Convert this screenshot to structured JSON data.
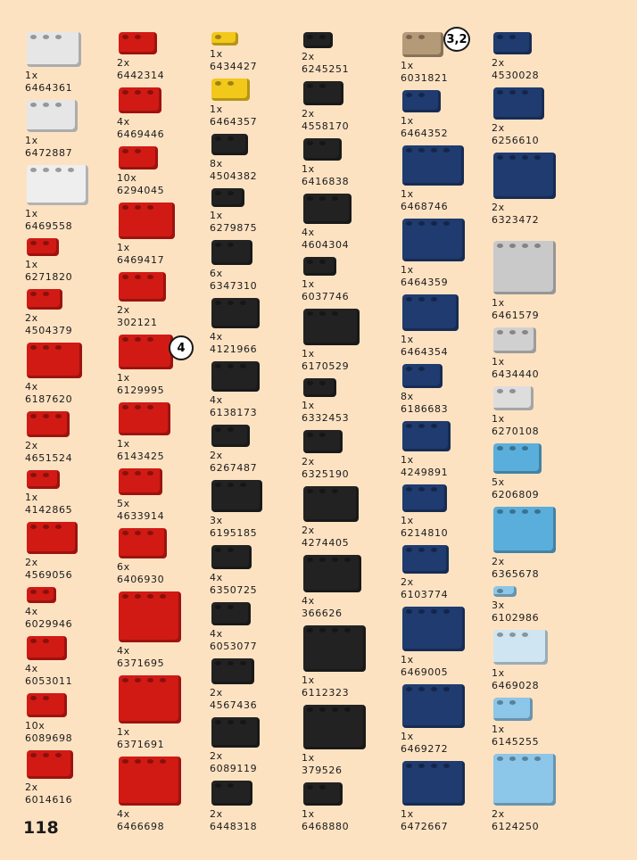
{
  "page_number": "118",
  "columns": [
    {
      "items": [
        {
          "qty": "1x",
          "part": "6464361"
        },
        {
          "qty": "1x",
          "part": "6472887"
        },
        {
          "qty": "1x",
          "part": "6469558"
        },
        {
          "qty": "1x",
          "part": "6271820"
        },
        {
          "qty": "2x",
          "part": "4504379"
        },
        {
          "qty": "4x",
          "part": "6187620"
        },
        {
          "qty": "2x",
          "part": "4651524"
        },
        {
          "qty": "1x",
          "part": "4142865"
        },
        {
          "qty": "2x",
          "part": "4569056"
        },
        {
          "qty": "4x",
          "part": "6029946"
        },
        {
          "qty": "4x",
          "part": "6053011"
        },
        {
          "qty": "10x",
          "part": "6089698"
        },
        {
          "qty": "2x",
          "part": "6014616"
        }
      ]
    },
    {
      "items": [
        {
          "qty": "2x",
          "part": "6442314"
        },
        {
          "qty": "4x",
          "part": "6469446"
        },
        {
          "qty": "10x",
          "part": "6294045"
        },
        {
          "qty": "1x",
          "part": "6469417"
        },
        {
          "qty": "2x",
          "part": "302121"
        },
        {
          "qty": "1x",
          "part": "6129995"
        },
        {
          "qty": "1x",
          "part": "6143425"
        },
        {
          "qty": "5x",
          "part": "4633914"
        },
        {
          "qty": "6x",
          "part": "6406930"
        },
        {
          "qty": "4x",
          "part": "6371695"
        },
        {
          "qty": "1x",
          "part": "6371691"
        },
        {
          "qty": "4x",
          "part": "6466698"
        }
      ]
    },
    {
      "items": [
        {
          "qty": "1x",
          "part": "6434427"
        },
        {
          "qty": "1x",
          "part": "6464357"
        },
        {
          "qty": "8x",
          "part": "4504382"
        },
        {
          "qty": "1x",
          "part": "6279875"
        },
        {
          "qty": "6x",
          "part": "6347310"
        },
        {
          "qty": "4x",
          "part": "4121966"
        },
        {
          "qty": "4x",
          "part": "6138173"
        },
        {
          "qty": "2x",
          "part": "6267487"
        },
        {
          "qty": "3x",
          "part": "6195185"
        },
        {
          "qty": "4x",
          "part": "6350725"
        },
        {
          "qty": "4x",
          "part": "6053077"
        },
        {
          "qty": "2x",
          "part": "4567436"
        },
        {
          "qty": "2x",
          "part": "6089119"
        },
        {
          "qty": "2x",
          "part": "6448318"
        }
      ]
    },
    {
      "items": [
        {
          "qty": "2x",
          "part": "6245251"
        },
        {
          "qty": "2x",
          "part": "4558170"
        },
        {
          "qty": "1x",
          "part": "6416838"
        },
        {
          "qty": "4x",
          "part": "4604304"
        },
        {
          "qty": "1x",
          "part": "6037746"
        },
        {
          "qty": "1x",
          "part": "6170529"
        },
        {
          "qty": "1x",
          "part": "6332453"
        },
        {
          "qty": "2x",
          "part": "6325190"
        },
        {
          "qty": "2x",
          "part": "4274405"
        },
        {
          "qty": "4x",
          "part": "366626"
        },
        {
          "qty": "1x",
          "part": "6112323"
        },
        {
          "qty": "1x",
          "part": "379526"
        },
        {
          "qty": "1x",
          "part": "6468880"
        }
      ]
    },
    {
      "items": [
        {
          "qty": "1x",
          "part": "6031821"
        },
        {
          "qty": "1x",
          "part": "6464352"
        },
        {
          "qty": "1x",
          "part": "6468746"
        },
        {
          "qty": "1x",
          "part": "6464359"
        },
        {
          "qty": "1x",
          "part": "6464354"
        },
        {
          "qty": "8x",
          "part": "6186683"
        },
        {
          "qty": "1x",
          "part": "4249891"
        },
        {
          "qty": "1x",
          "part": "6214810"
        },
        {
          "qty": "2x",
          "part": "6103774"
        },
        {
          "qty": "1x",
          "part": "6469005"
        },
        {
          "qty": "1x",
          "part": "6469272"
        },
        {
          "qty": "1x",
          "part": "6472667"
        }
      ]
    },
    {
      "items": [
        {
          "qty": "2x",
          "part": "4530028"
        },
        {
          "qty": "2x",
          "part": "6256610"
        },
        {
          "qty": "2x",
          "part": "6323472"
        },
        {
          "qty": "1x",
          "part": "6461579"
        },
        {
          "qty": "1x",
          "part": "6434440"
        },
        {
          "qty": "1x",
          "part": "6270108"
        },
        {
          "qty": "5x",
          "part": "6206809"
        },
        {
          "qty": "2x",
          "part": "6365678"
        },
        {
          "qty": "3x",
          "part": "6102986"
        },
        {
          "qty": "1x",
          "part": "6469028"
        },
        {
          "qty": "1x",
          "part": "6145255"
        },
        {
          "qty": "2x",
          "part": "6124250"
        }
      ]
    }
  ],
  "callouts": [
    "4",
    "3,2"
  ]
}
